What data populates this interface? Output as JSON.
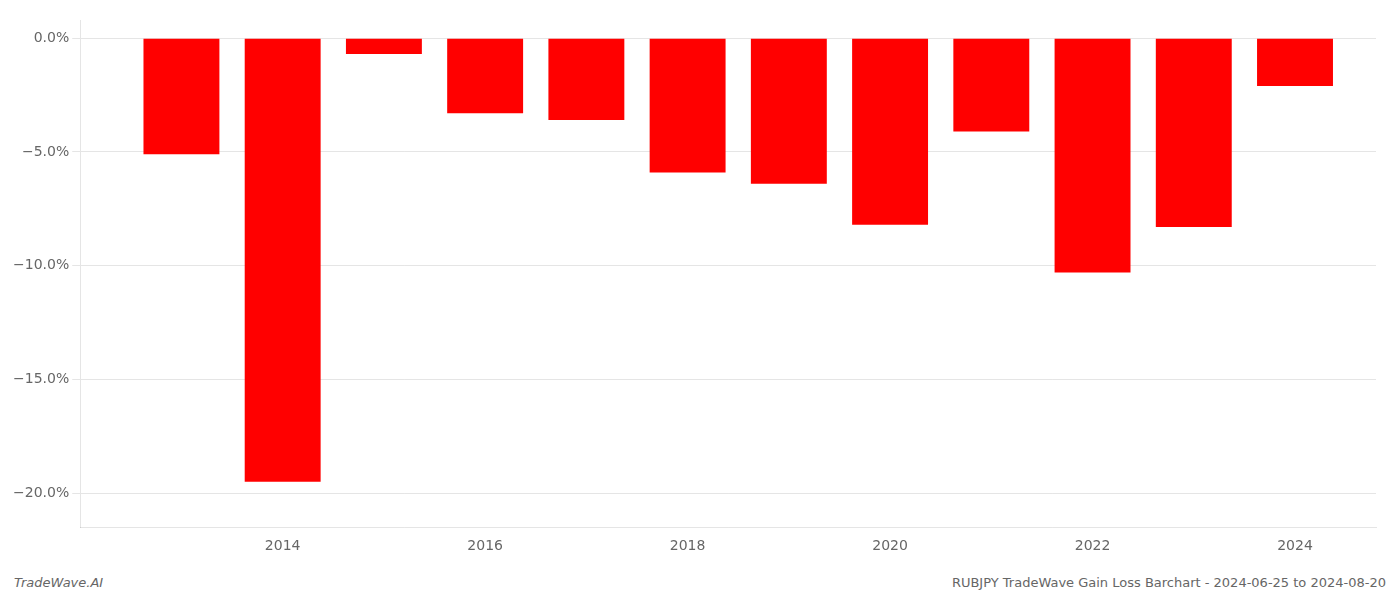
{
  "chart_data": {
    "type": "bar",
    "x": [
      2013,
      2014,
      2015,
      2016,
      2017,
      2018,
      2019,
      2020,
      2021,
      2022,
      2023,
      2024
    ],
    "values": [
      -5.1,
      -19.5,
      -0.7,
      -3.3,
      -3.6,
      -5.9,
      -6.4,
      -8.2,
      -4.1,
      -10.3,
      -8.3,
      -2.1
    ],
    "color": "#FF0000",
    "xlim": [
      2012,
      2024.8
    ],
    "xticks": [
      2014,
      2016,
      2018,
      2020,
      2022,
      2024
    ],
    "ylim": [
      -21.5,
      0.8
    ],
    "yticks": [
      {
        "value": 0.0,
        "label": "0.0%"
      },
      {
        "value": -5.0,
        "label": "−5.0%"
      },
      {
        "value": -10.0,
        "label": "−10.0%"
      },
      {
        "value": -15.0,
        "label": "−15.0%"
      },
      {
        "value": -20.0,
        "label": "−20.0%"
      }
    ],
    "grid": true,
    "annotations": [
      "TradeWave.AI",
      "RUBJPY TradeWave Gain Loss Barchart - 2024-06-25 to 2024-08-20"
    ]
  }
}
